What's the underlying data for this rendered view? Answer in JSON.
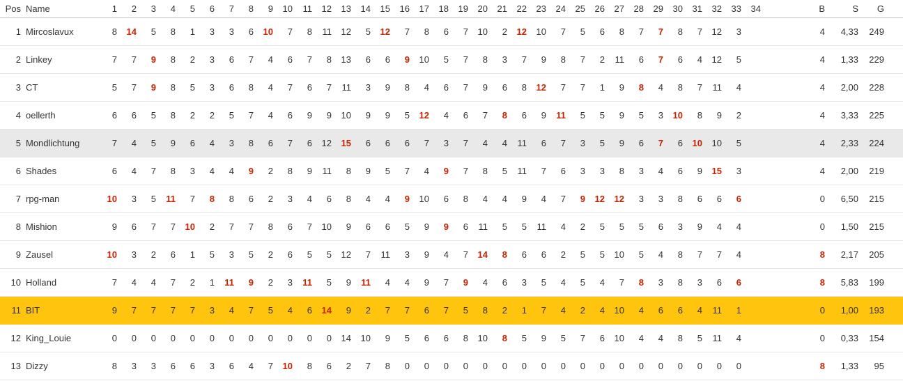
{
  "colors": {
    "text": "#333333",
    "highlight_text": "#cc2200",
    "row_gray_bg": "#e9e9e9",
    "row_gold_bg": "#ffc40d",
    "row_border": "#e4e4e4",
    "header_border": "#c9c9c9"
  },
  "table": {
    "headers": {
      "pos": "Pos",
      "name": "Name",
      "b": "B",
      "s": "S",
      "g": "G"
    },
    "round_headers": [
      "1",
      "2",
      "3",
      "4",
      "5",
      "6",
      "7",
      "8",
      "9",
      "10",
      "11",
      "12",
      "13",
      "14",
      "15",
      "16",
      "17",
      "18",
      "19",
      "20",
      "21",
      "22",
      "23",
      "24",
      "25",
      "26",
      "27",
      "28",
      "29",
      "30",
      "31",
      "32",
      "33",
      "34"
    ],
    "rows": [
      {
        "pos": "1",
        "name": "Mircoslavux",
        "row_highlight": null,
        "rounds": [
          "8",
          "14",
          "5",
          "8",
          "1",
          "3",
          "3",
          "6",
          "10",
          "7",
          "8",
          "11",
          "12",
          "5",
          "12",
          "7",
          "8",
          "6",
          "7",
          "10",
          "2",
          "12",
          "10",
          "7",
          "5",
          "6",
          "8",
          "7",
          "7",
          "8",
          "7",
          "12",
          "3",
          ""
        ],
        "red_rounds": [
          2,
          9,
          15,
          22,
          29
        ],
        "b": "4",
        "b_red": false,
        "s": "4,33",
        "g": "249"
      },
      {
        "pos": "2",
        "name": "Linkey",
        "row_highlight": null,
        "rounds": [
          "7",
          "7",
          "9",
          "8",
          "2",
          "3",
          "6",
          "7",
          "4",
          "6",
          "7",
          "8",
          "13",
          "6",
          "6",
          "9",
          "10",
          "5",
          "7",
          "8",
          "3",
          "7",
          "9",
          "8",
          "7",
          "2",
          "11",
          "6",
          "7",
          "6",
          "4",
          "12",
          "5",
          ""
        ],
        "red_rounds": [
          3,
          16,
          29
        ],
        "b": "4",
        "b_red": false,
        "s": "1,33",
        "g": "229"
      },
      {
        "pos": "3",
        "name": "CT",
        "row_highlight": null,
        "rounds": [
          "5",
          "7",
          "9",
          "8",
          "5",
          "3",
          "6",
          "8",
          "4",
          "7",
          "6",
          "7",
          "11",
          "3",
          "9",
          "8",
          "4",
          "6",
          "7",
          "9",
          "6",
          "8",
          "12",
          "7",
          "7",
          "1",
          "9",
          "8",
          "4",
          "8",
          "7",
          "11",
          "4",
          ""
        ],
        "red_rounds": [
          3,
          23,
          28
        ],
        "b": "4",
        "b_red": false,
        "s": "2,00",
        "g": "228"
      },
      {
        "pos": "4",
        "name": "oellerth",
        "row_highlight": null,
        "rounds": [
          "6",
          "6",
          "5",
          "8",
          "2",
          "2",
          "5",
          "7",
          "4",
          "6",
          "9",
          "9",
          "10",
          "9",
          "9",
          "5",
          "12",
          "4",
          "6",
          "7",
          "8",
          "6",
          "9",
          "11",
          "5",
          "5",
          "9",
          "5",
          "3",
          "10",
          "8",
          "9",
          "2",
          ""
        ],
        "red_rounds": [
          17,
          21,
          24,
          30
        ],
        "b": "4",
        "b_red": false,
        "s": "3,33",
        "g": "225"
      },
      {
        "pos": "5",
        "name": "Mondlichtung",
        "row_highlight": "gray",
        "rounds": [
          "7",
          "4",
          "5",
          "9",
          "6",
          "4",
          "3",
          "8",
          "6",
          "7",
          "6",
          "12",
          "15",
          "6",
          "6",
          "6",
          "7",
          "3",
          "7",
          "4",
          "4",
          "11",
          "6",
          "7",
          "3",
          "5",
          "9",
          "6",
          "7",
          "6",
          "10",
          "10",
          "5",
          ""
        ],
        "red_rounds": [
          13,
          29,
          31
        ],
        "b": "4",
        "b_red": false,
        "s": "2,33",
        "g": "224"
      },
      {
        "pos": "6",
        "name": "Shades",
        "row_highlight": null,
        "rounds": [
          "6",
          "4",
          "7",
          "8",
          "3",
          "4",
          "4",
          "9",
          "2",
          "8",
          "9",
          "11",
          "8",
          "9",
          "5",
          "7",
          "4",
          "9",
          "7",
          "8",
          "5",
          "11",
          "7",
          "6",
          "3",
          "3",
          "8",
          "3",
          "4",
          "6",
          "9",
          "15",
          "3",
          ""
        ],
        "red_rounds": [
          8,
          18,
          32
        ],
        "b": "4",
        "b_red": false,
        "s": "2,00",
        "g": "219"
      },
      {
        "pos": "7",
        "name": "rpg-man",
        "row_highlight": null,
        "rounds": [
          "10",
          "3",
          "5",
          "11",
          "7",
          "8",
          "8",
          "6",
          "2",
          "3",
          "4",
          "6",
          "8",
          "4",
          "4",
          "9",
          "10",
          "6",
          "8",
          "4",
          "4",
          "9",
          "4",
          "7",
          "9",
          "12",
          "12",
          "3",
          "3",
          "8",
          "6",
          "6",
          "6",
          ""
        ],
        "red_rounds": [
          1,
          4,
          6,
          16,
          25,
          26,
          27,
          33
        ],
        "b": "0",
        "b_red": false,
        "s": "6,50",
        "g": "215"
      },
      {
        "pos": "8",
        "name": "Mishion",
        "row_highlight": null,
        "rounds": [
          "9",
          "6",
          "7",
          "7",
          "10",
          "2",
          "7",
          "7",
          "8",
          "6",
          "7",
          "10",
          "9",
          "6",
          "6",
          "5",
          "9",
          "9",
          "6",
          "11",
          "5",
          "5",
          "11",
          "4",
          "2",
          "5",
          "5",
          "5",
          "6",
          "3",
          "9",
          "4",
          "4",
          ""
        ],
        "red_rounds": [
          5,
          18
        ],
        "b": "0",
        "b_red": false,
        "s": "1,50",
        "g": "215"
      },
      {
        "pos": "9",
        "name": "Zausel",
        "row_highlight": null,
        "rounds": [
          "10",
          "3",
          "2",
          "6",
          "1",
          "5",
          "3",
          "5",
          "2",
          "6",
          "5",
          "5",
          "12",
          "7",
          "11",
          "3",
          "9",
          "4",
          "7",
          "14",
          "8",
          "6",
          "6",
          "2",
          "5",
          "5",
          "10",
          "5",
          "4",
          "8",
          "7",
          "7",
          "4",
          ""
        ],
        "red_rounds": [
          1,
          20,
          21
        ],
        "b": "8",
        "b_red": true,
        "s": "2,17",
        "g": "205"
      },
      {
        "pos": "10",
        "name": "Holland",
        "row_highlight": null,
        "rounds": [
          "7",
          "4",
          "4",
          "7",
          "2",
          "1",
          "11",
          "9",
          "2",
          "3",
          "11",
          "5",
          "9",
          "11",
          "4",
          "4",
          "9",
          "7",
          "9",
          "4",
          "6",
          "3",
          "5",
          "4",
          "5",
          "4",
          "7",
          "8",
          "3",
          "8",
          "3",
          "6",
          "6",
          ""
        ],
        "red_rounds": [
          7,
          8,
          11,
          14,
          19,
          28,
          33
        ],
        "b": "8",
        "b_red": true,
        "s": "5,83",
        "g": "199"
      },
      {
        "pos": "11",
        "name": "BIT",
        "row_highlight": "gold",
        "rounds": [
          "9",
          "7",
          "7",
          "7",
          "7",
          "3",
          "4",
          "7",
          "5",
          "4",
          "6",
          "14",
          "9",
          "2",
          "7",
          "7",
          "6",
          "7",
          "5",
          "8",
          "2",
          "1",
          "7",
          "4",
          "2",
          "4",
          "10",
          "4",
          "6",
          "6",
          "4",
          "11",
          "1",
          ""
        ],
        "red_rounds": [
          12
        ],
        "b": "0",
        "b_red": false,
        "s": "1,00",
        "g": "193"
      },
      {
        "pos": "12",
        "name": "King_Louie",
        "row_highlight": null,
        "rounds": [
          "0",
          "0",
          "0",
          "0",
          "0",
          "0",
          "0",
          "0",
          "0",
          "0",
          "0",
          "0",
          "14",
          "10",
          "9",
          "5",
          "6",
          "6",
          "8",
          "10",
          "8",
          "5",
          "9",
          "5",
          "7",
          "6",
          "10",
          "4",
          "4",
          "8",
          "5",
          "11",
          "4",
          ""
        ],
        "red_rounds": [
          21
        ],
        "b": "0",
        "b_red": false,
        "s": "0,33",
        "g": "154"
      },
      {
        "pos": "13",
        "name": "Dizzy",
        "row_highlight": null,
        "rounds": [
          "8",
          "3",
          "3",
          "6",
          "6",
          "3",
          "6",
          "4",
          "7",
          "10",
          "8",
          "6",
          "2",
          "7",
          "8",
          "0",
          "0",
          "0",
          "0",
          "0",
          "0",
          "0",
          "0",
          "0",
          "0",
          "0",
          "0",
          "0",
          "0",
          "0",
          "0",
          "0",
          "0",
          ""
        ],
        "red_rounds": [
          10
        ],
        "b": "8",
        "b_red": true,
        "s": "1,33",
        "g": "95"
      }
    ]
  }
}
